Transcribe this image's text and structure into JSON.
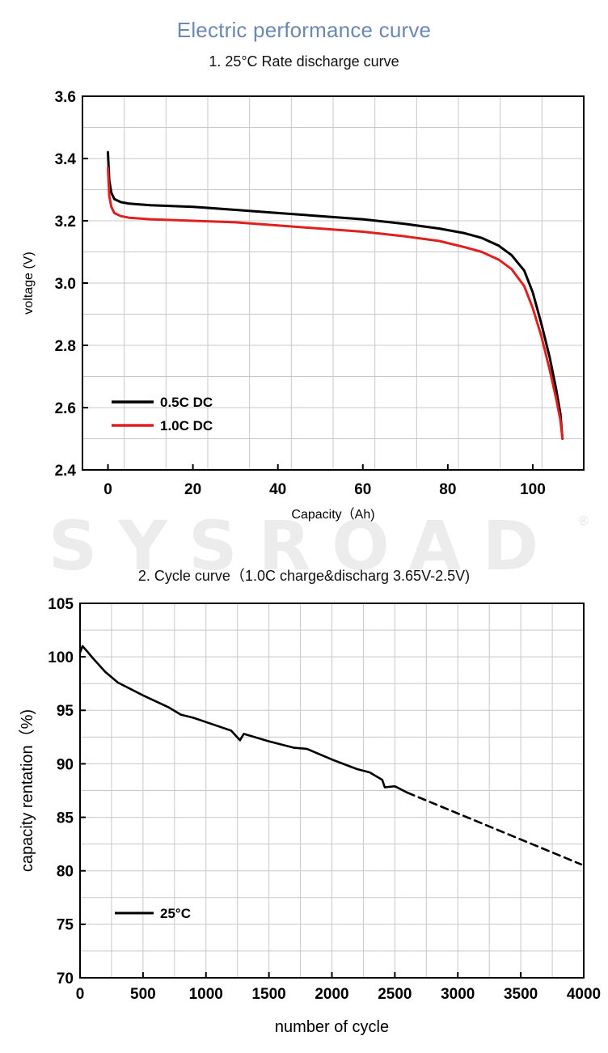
{
  "header": {
    "title": "Electric performance curve",
    "section1_title": "1. 25°C Rate discharge curve",
    "section2_title": "2. Cycle curve（1.0C charge&discharg 3.65V-2.5V)"
  },
  "watermark": {
    "text": "SYSROAD",
    "mark": "®"
  },
  "chart_data": [
    {
      "type": "line",
      "title": "1. 25°C Rate discharge curve",
      "xlabel": "Capacity（Ah)",
      "ylabel": "voltage (V)",
      "xlim": [
        -6,
        112
      ],
      "ylim": [
        2.4,
        3.6
      ],
      "x_ticks": [
        "0",
        "20",
        "40",
        "60",
        "80",
        "100"
      ],
      "y_ticks": [
        "2.4",
        "2.6",
        "2.8",
        "3.0",
        "3.2",
        "3.4",
        "3.6"
      ],
      "grid": true,
      "legend_position": "bottom-left",
      "series": [
        {
          "name": "0.5C DC",
          "color": "#000000",
          "points": [
            [
              0,
              3.42
            ],
            [
              0.3,
              3.33
            ],
            [
              0.8,
              3.29
            ],
            [
              1.5,
              3.27
            ],
            [
              3,
              3.26
            ],
            [
              5,
              3.255
            ],
            [
              10,
              3.25
            ],
            [
              20,
              3.245
            ],
            [
              30,
              3.235
            ],
            [
              40,
              3.225
            ],
            [
              50,
              3.215
            ],
            [
              60,
              3.205
            ],
            [
              70,
              3.19
            ],
            [
              78,
              3.175
            ],
            [
              84,
              3.16
            ],
            [
              88,
              3.145
            ],
            [
              92,
              3.12
            ],
            [
              95,
              3.09
            ],
            [
              98,
              3.04
            ],
            [
              100,
              2.97
            ],
            [
              102,
              2.87
            ],
            [
              104,
              2.76
            ],
            [
              105.5,
              2.66
            ],
            [
              106.5,
              2.58
            ],
            [
              107,
              2.5
            ]
          ]
        },
        {
          "name": "1.0C DC",
          "color": "#e02020",
          "points": [
            [
              0,
              3.37
            ],
            [
              0.3,
              3.28
            ],
            [
              0.8,
              3.245
            ],
            [
              1.5,
              3.225
            ],
            [
              3,
              3.215
            ],
            [
              5,
              3.21
            ],
            [
              10,
              3.205
            ],
            [
              20,
              3.2
            ],
            [
              30,
              3.195
            ],
            [
              40,
              3.185
            ],
            [
              50,
              3.175
            ],
            [
              60,
              3.165
            ],
            [
              70,
              3.15
            ],
            [
              78,
              3.135
            ],
            [
              84,
              3.115
            ],
            [
              88,
              3.1
            ],
            [
              92,
              3.075
            ],
            [
              95,
              3.045
            ],
            [
              98,
              2.99
            ],
            [
              100,
              2.92
            ],
            [
              102,
              2.83
            ],
            [
              104,
              2.72
            ],
            [
              105.5,
              2.63
            ],
            [
              106.5,
              2.56
            ],
            [
              107,
              2.5
            ]
          ]
        }
      ]
    },
    {
      "type": "line",
      "title": "2. Cycle curve（1.0C charge&discharg 3.65V-2.5V)",
      "xlabel": "number of cycle",
      "ylabel": "capacity rentation（%)",
      "xlim": [
        0,
        4000
      ],
      "ylim": [
        70,
        105
      ],
      "x_ticks": [
        "0",
        "500",
        "1000",
        "1500",
        "2000",
        "2500",
        "3000",
        "3500",
        "4000"
      ],
      "y_ticks": [
        "70",
        "75",
        "80",
        "85",
        "90",
        "95",
        "100",
        "105"
      ],
      "grid": true,
      "legend_position": "bottom-left",
      "series": [
        {
          "name": "25°C",
          "color": "#000000",
          "points": [
            [
              0,
              100.4
            ],
            [
              20,
              101.0
            ],
            [
              50,
              100.6
            ],
            [
              100,
              99.9
            ],
            [
              200,
              98.6
            ],
            [
              300,
              97.6
            ],
            [
              500,
              96.4
            ],
            [
              700,
              95.3
            ],
            [
              800,
              94.6
            ],
            [
              900,
              94.3
            ],
            [
              1000,
              93.9
            ],
            [
              1200,
              93.1
            ],
            [
              1270,
              92.2
            ],
            [
              1300,
              92.8
            ],
            [
              1500,
              92.1
            ],
            [
              1700,
              91.5
            ],
            [
              1800,
              91.4
            ],
            [
              2000,
              90.4
            ],
            [
              2200,
              89.5
            ],
            [
              2300,
              89.2
            ],
            [
              2400,
              88.5
            ],
            [
              2420,
              87.8
            ],
            [
              2500,
              87.9
            ],
            [
              2600,
              87.3
            ]
          ]
        },
        {
          "name": "",
          "style": "dashed",
          "color": "#000000",
          "points": [
            [
              2600,
              87.3
            ],
            [
              3980,
              80.6
            ]
          ]
        }
      ]
    }
  ]
}
